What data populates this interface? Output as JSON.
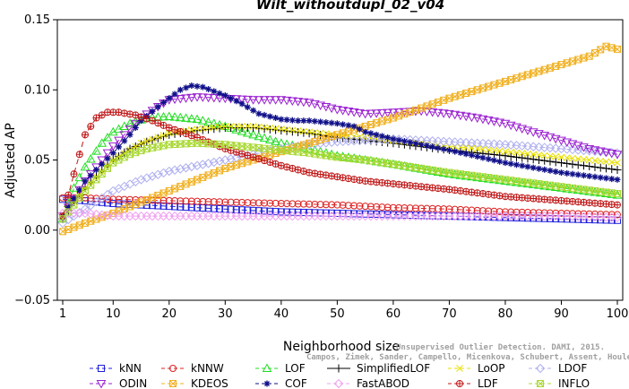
{
  "chart_data": {
    "type": "line",
    "title": "Wilt_withoutdupl_02_v04",
    "xlabel": "Neighborhood size",
    "ylabel": "Adjusted AP",
    "xlim": [
      1,
      100
    ],
    "ylim": [
      -0.05,
      0.15
    ],
    "xticks": [
      1,
      10,
      20,
      30,
      40,
      50,
      60,
      70,
      80,
      90,
      100
    ],
    "yticks": [
      -0.05,
      0.0,
      0.05,
      0.1,
      0.15
    ],
    "ytick_labels": [
      "−0.05",
      "0.00",
      "0.05",
      "0.10",
      "0.15"
    ],
    "credit_line1": "Unsupervised Outlier Detection. DAMI, 2015.",
    "credit_line2": "Campos, Zimek, Sander, Campello, Micenkova, Schubert, Assent, Houle",
    "legend_position": "bottom",
    "series": [
      {
        "name": "kNN",
        "color": "#2020dd",
        "marker": "square",
        "dash": "6,4",
        "points": [
          [
            1,
            0.022
          ],
          [
            5,
            0.021
          ],
          [
            10,
            0.019
          ],
          [
            20,
            0.017
          ],
          [
            30,
            0.015
          ],
          [
            40,
            0.013
          ],
          [
            50,
            0.012
          ],
          [
            60,
            0.011
          ],
          [
            70,
            0.01
          ],
          [
            80,
            0.009
          ],
          [
            90,
            0.008
          ],
          [
            100,
            0.007
          ]
        ]
      },
      {
        "name": "kNNW",
        "color": "#dd2020",
        "marker": "circle",
        "dash": "6,4",
        "points": [
          [
            1,
            0.023
          ],
          [
            5,
            0.023
          ],
          [
            10,
            0.022
          ],
          [
            20,
            0.021
          ],
          [
            30,
            0.02
          ],
          [
            40,
            0.019
          ],
          [
            50,
            0.018
          ],
          [
            60,
            0.016
          ],
          [
            70,
            0.015
          ],
          [
            80,
            0.013
          ],
          [
            90,
            0.012
          ],
          [
            100,
            0.011
          ]
        ]
      },
      {
        "name": "LOF",
        "color": "#22dd22",
        "marker": "triangle",
        "dash": "6,4",
        "points": [
          [
            1,
            0.008
          ],
          [
            3,
            0.03
          ],
          [
            5,
            0.045
          ],
          [
            8,
            0.062
          ],
          [
            10,
            0.07
          ],
          [
            13,
            0.076
          ],
          [
            16,
            0.08
          ],
          [
            20,
            0.081
          ],
          [
            25,
            0.079
          ],
          [
            30,
            0.074
          ],
          [
            35,
            0.068
          ],
          [
            40,
            0.062
          ],
          [
            45,
            0.058
          ],
          [
            50,
            0.053
          ],
          [
            55,
            0.05
          ],
          [
            60,
            0.047
          ],
          [
            70,
            0.04
          ],
          [
            80,
            0.035
          ],
          [
            90,
            0.03
          ],
          [
            100,
            0.025
          ]
        ]
      },
      {
        "name": "SimplifiedLOF",
        "color": "#000000",
        "marker": "plus",
        "dash": "",
        "points": [
          [
            1,
            0.008
          ],
          [
            3,
            0.02
          ],
          [
            5,
            0.03
          ],
          [
            8,
            0.042
          ],
          [
            10,
            0.05
          ],
          [
            13,
            0.058
          ],
          [
            16,
            0.063
          ],
          [
            20,
            0.068
          ],
          [
            25,
            0.071
          ],
          [
            30,
            0.073
          ],
          [
            35,
            0.073
          ],
          [
            40,
            0.071
          ],
          [
            45,
            0.069
          ],
          [
            50,
            0.066
          ],
          [
            55,
            0.064
          ],
          [
            60,
            0.062
          ],
          [
            70,
            0.057
          ],
          [
            80,
            0.053
          ],
          [
            90,
            0.048
          ],
          [
            100,
            0.043
          ]
        ]
      },
      {
        "name": "LoOP",
        "color": "#e8e000",
        "marker": "x",
        "dash": "6,4",
        "points": [
          [
            1,
            0.01
          ],
          [
            5,
            0.03
          ],
          [
            10,
            0.05
          ],
          [
            15,
            0.062
          ],
          [
            20,
            0.069
          ],
          [
            25,
            0.072
          ],
          [
            30,
            0.074
          ],
          [
            35,
            0.074
          ],
          [
            40,
            0.072
          ],
          [
            50,
            0.068
          ],
          [
            60,
            0.064
          ],
          [
            70,
            0.06
          ],
          [
            80,
            0.056
          ],
          [
            90,
            0.052
          ],
          [
            100,
            0.048
          ]
        ]
      },
      {
        "name": "LDOF",
        "color": "#b0b0f0",
        "marker": "diamond",
        "dash": "6,4",
        "points": [
          [
            1,
            0.005
          ],
          [
            5,
            0.015
          ],
          [
            10,
            0.028
          ],
          [
            15,
            0.036
          ],
          [
            20,
            0.042
          ],
          [
            25,
            0.046
          ],
          [
            30,
            0.05
          ],
          [
            35,
            0.054
          ],
          [
            40,
            0.058
          ],
          [
            45,
            0.061
          ],
          [
            50,
            0.063
          ],
          [
            55,
            0.064
          ],
          [
            60,
            0.065
          ],
          [
            70,
            0.063
          ],
          [
            80,
            0.061
          ],
          [
            90,
            0.058
          ],
          [
            100,
            0.055
          ]
        ]
      },
      {
        "name": "ODIN",
        "color": "#9a20d0",
        "marker": "triangle-down",
        "dash": "6,4",
        "points": [
          [
            1,
            0.01
          ],
          [
            5,
            0.035
          ],
          [
            10,
            0.06
          ],
          [
            13,
            0.072
          ],
          [
            15,
            0.08
          ],
          [
            18,
            0.088
          ],
          [
            20,
            0.093
          ],
          [
            25,
            0.095
          ],
          [
            30,
            0.094
          ],
          [
            35,
            0.093
          ],
          [
            40,
            0.093
          ],
          [
            45,
            0.091
          ],
          [
            50,
            0.086
          ],
          [
            55,
            0.083
          ],
          [
            60,
            0.084
          ],
          [
            65,
            0.085
          ],
          [
            70,
            0.083
          ],
          [
            75,
            0.08
          ],
          [
            80,
            0.076
          ],
          [
            85,
            0.07
          ],
          [
            90,
            0.064
          ],
          [
            95,
            0.058
          ],
          [
            100,
            0.054
          ]
        ]
      },
      {
        "name": "KDEOS",
        "color": "#f0b020",
        "marker": "square-x",
        "dash": "6,4",
        "points": [
          [
            1,
            -0.001
          ],
          [
            5,
            0.005
          ],
          [
            10,
            0.012
          ],
          [
            15,
            0.02
          ],
          [
            20,
            0.028
          ],
          [
            25,
            0.036
          ],
          [
            30,
            0.044
          ],
          [
            35,
            0.05
          ],
          [
            40,
            0.056
          ],
          [
            45,
            0.062
          ],
          [
            50,
            0.068
          ],
          [
            55,
            0.074
          ],
          [
            60,
            0.08
          ],
          [
            65,
            0.087
          ],
          [
            70,
            0.094
          ],
          [
            75,
            0.1
          ],
          [
            80,
            0.106
          ],
          [
            85,
            0.112
          ],
          [
            90,
            0.118
          ],
          [
            95,
            0.124
          ],
          [
            98,
            0.131
          ],
          [
            100,
            0.129
          ]
        ]
      },
      {
        "name": "COF",
        "color": "#10108a",
        "marker": "asterisk",
        "dash": "6,4",
        "points": [
          [
            1,
            0.01
          ],
          [
            5,
            0.035
          ],
          [
            10,
            0.055
          ],
          [
            13,
            0.068
          ],
          [
            15,
            0.078
          ],
          [
            18,
            0.088
          ],
          [
            20,
            0.094
          ],
          [
            22,
            0.1
          ],
          [
            24,
            0.103
          ],
          [
            26,
            0.102
          ],
          [
            28,
            0.099
          ],
          [
            30,
            0.096
          ],
          [
            33,
            0.09
          ],
          [
            36,
            0.083
          ],
          [
            40,
            0.079
          ],
          [
            43,
            0.078
          ],
          [
            45,
            0.078
          ],
          [
            50,
            0.076
          ],
          [
            53,
            0.074
          ],
          [
            55,
            0.07
          ],
          [
            60,
            0.065
          ],
          [
            70,
            0.057
          ],
          [
            80,
            0.048
          ],
          [
            90,
            0.041
          ],
          [
            100,
            0.036
          ]
        ]
      },
      {
        "name": "FastABOD",
        "color": "#f0a0f0",
        "marker": "diamond",
        "dash": "6,4",
        "points": [
          [
            1,
            0.012
          ],
          [
            5,
            0.012
          ],
          [
            10,
            0.01
          ],
          [
            20,
            0.01
          ],
          [
            30,
            0.01
          ],
          [
            40,
            0.01
          ],
          [
            50,
            0.01
          ],
          [
            60,
            0.01
          ],
          [
            70,
            0.01
          ],
          [
            80,
            0.01
          ],
          [
            90,
            0.01
          ],
          [
            100,
            0.009
          ]
        ]
      },
      {
        "name": "LDF",
        "color": "#c01818",
        "marker": "circle-plus",
        "dash": "6,4",
        "points": [
          [
            1,
            0.01
          ],
          [
            3,
            0.04
          ],
          [
            5,
            0.068
          ],
          [
            7,
            0.08
          ],
          [
            9,
            0.084
          ],
          [
            11,
            0.084
          ],
          [
            14,
            0.082
          ],
          [
            17,
            0.078
          ],
          [
            20,
            0.073
          ],
          [
            25,
            0.066
          ],
          [
            30,
            0.058
          ],
          [
            35,
            0.052
          ],
          [
            40,
            0.046
          ],
          [
            45,
            0.041
          ],
          [
            50,
            0.038
          ],
          [
            55,
            0.035
          ],
          [
            60,
            0.033
          ],
          [
            70,
            0.029
          ],
          [
            80,
            0.024
          ],
          [
            90,
            0.021
          ],
          [
            100,
            0.018
          ]
        ]
      },
      {
        "name": "INFLO",
        "color": "#a8d830",
        "marker": "square-x",
        "dash": "6,4",
        "points": [
          [
            1,
            0.008
          ],
          [
            3,
            0.018
          ],
          [
            5,
            0.028
          ],
          [
            8,
            0.04
          ],
          [
            10,
            0.048
          ],
          [
            13,
            0.054
          ],
          [
            16,
            0.058
          ],
          [
            20,
            0.061
          ],
          [
            25,
            0.062
          ],
          [
            30,
            0.061
          ],
          [
            35,
            0.059
          ],
          [
            40,
            0.057
          ],
          [
            45,
            0.055
          ],
          [
            50,
            0.052
          ],
          [
            55,
            0.05
          ],
          [
            60,
            0.047
          ],
          [
            70,
            0.041
          ],
          [
            80,
            0.036
          ],
          [
            90,
            0.031
          ],
          [
            100,
            0.026
          ]
        ]
      }
    ],
    "legend_order": [
      "kNN",
      "kNNW",
      "LOF",
      "SimplifiedLOF",
      "LoOP",
      "LDOF",
      "ODIN",
      "KDEOS",
      "COF",
      "FastABOD",
      "LDF",
      "INFLO"
    ]
  }
}
